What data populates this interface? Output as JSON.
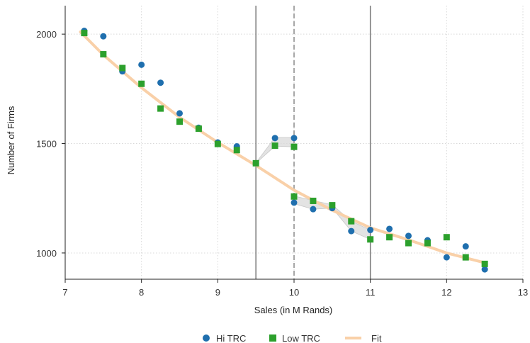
{
  "chart_data": {
    "type": "scatter",
    "xlabel": "Sales (in M Rands)",
    "ylabel": "Number of Firms",
    "xlim": [
      7,
      13
    ],
    "ylim": [
      880,
      2130
    ],
    "xticks": [
      7,
      8,
      9,
      10,
      11,
      12,
      13
    ],
    "yticks": [
      1000,
      1500,
      2000
    ],
    "grid": true,
    "legend_position": "bottom",
    "vertical_lines": [
      {
        "x": 9.5,
        "style": "solid",
        "color": "#7a7a7a"
      },
      {
        "x": 10.0,
        "style": "dashed",
        "color": "#8a8a8a"
      },
      {
        "x": 11.0,
        "style": "solid",
        "color": "#7a7a7a"
      }
    ],
    "series": [
      {
        "name": "Hi TRC",
        "marker": "circle",
        "color": "#1f6fae",
        "x": [
          7.25,
          7.5,
          7.75,
          8.0,
          8.25,
          8.5,
          8.75,
          9.0,
          9.25,
          9.5,
          9.75,
          10.0,
          10.0,
          10.25,
          10.5,
          10.75,
          11.0,
          11.25,
          11.5,
          11.75,
          12.0,
          12.25,
          12.5
        ],
        "y": [
          2015,
          1990,
          1830,
          1860,
          1778,
          1638,
          1572,
          1505,
          1487,
          1410,
          1525,
          1525,
          1230,
          1200,
          1205,
          1100,
          1105,
          1110,
          1078,
          1058,
          980,
          1030,
          925
        ]
      },
      {
        "name": "Low TRC",
        "marker": "square",
        "color": "#2ca02c",
        "x": [
          7.25,
          7.5,
          7.75,
          8.0,
          8.25,
          8.5,
          8.75,
          9.0,
          9.25,
          9.5,
          9.75,
          10.0,
          10.0,
          10.25,
          10.5,
          10.75,
          11.0,
          11.25,
          11.5,
          11.75,
          12.0,
          12.25,
          12.5
        ],
        "y": [
          2005,
          1908,
          1845,
          1773,
          1660,
          1600,
          1568,
          1498,
          1470,
          1410,
          1490,
          1485,
          1258,
          1238,
          1218,
          1145,
          1062,
          1072,
          1045,
          1045,
          1072,
          980,
          950
        ]
      },
      {
        "name": "Fit",
        "type": "line",
        "color": "#f9d0a8",
        "x": [
          7.2,
          7.5,
          8.0,
          8.5,
          9.0,
          9.5,
          10.0,
          10.5,
          11.0,
          11.5,
          12.0,
          12.5
        ],
        "y": [
          2010,
          1905,
          1755,
          1620,
          1505,
          1400,
          1287,
          1195,
          1115,
          1060,
          1000,
          955
        ]
      }
    ],
    "ci_bands": [
      {
        "x": [
          9.5,
          9.75,
          10.0
        ],
        "lower": [
          1410,
          1488,
          1485
        ],
        "upper": [
          1412,
          1528,
          1528
        ]
      },
      {
        "x": [
          10.0,
          10.25,
          10.5,
          10.75,
          11.0
        ],
        "lower": [
          1225,
          1200,
          1205,
          1100,
          1062
        ],
        "upper": [
          1260,
          1240,
          1220,
          1145,
          1105
        ]
      }
    ]
  },
  "colors": {
    "grid": "#d8d8d8",
    "axis": "#222222",
    "band": "#d9d9d9"
  }
}
